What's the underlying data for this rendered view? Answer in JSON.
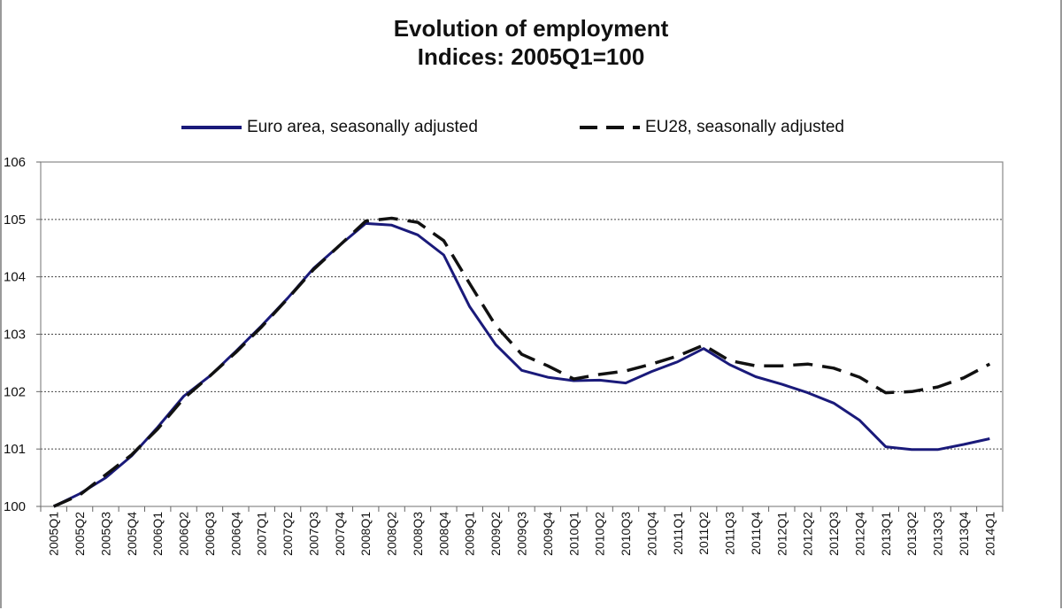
{
  "chart_data": {
    "type": "line",
    "title": "Evolution of employment",
    "subtitle": "Indices: 2005Q1=100",
    "xlabel": "",
    "ylabel": "",
    "ylim": [
      100,
      106
    ],
    "yticks": [
      100,
      101,
      102,
      103,
      104,
      105,
      106
    ],
    "grid": "horizontal dotted",
    "legend_position": "top",
    "categories": [
      "2005Q1",
      "2005Q2",
      "2005Q3",
      "2005Q4",
      "2006Q1",
      "2006Q2",
      "2006Q3",
      "2006Q4",
      "2007Q1",
      "2007Q2",
      "2007Q3",
      "2007Q4",
      "2008Q1",
      "2008Q2",
      "2008Q3",
      "2008Q4",
      "2009Q1",
      "2009Q2",
      "2009Q3",
      "2009Q4",
      "2010Q1",
      "2010Q2",
      "2010Q3",
      "2010Q4",
      "2011Q1",
      "2011Q2",
      "2011Q3",
      "2011Q4",
      "2012Q1",
      "2012Q2",
      "2012Q3",
      "2012Q4",
      "2013Q1",
      "2013Q2",
      "2013Q3",
      "2013Q4",
      "2014Q1"
    ],
    "series": [
      {
        "name": "Euro area, seasonally adjusted",
        "color": "#1a1a7a",
        "style": "solid",
        "values": [
          100.0,
          100.22,
          100.5,
          100.88,
          101.38,
          101.92,
          102.27,
          102.7,
          103.15,
          103.63,
          104.15,
          104.55,
          104.93,
          104.9,
          104.73,
          104.38,
          103.48,
          102.82,
          102.37,
          102.25,
          102.19,
          102.2,
          102.15,
          102.35,
          102.52,
          102.75,
          102.47,
          102.26,
          102.13,
          101.98,
          101.8,
          101.5,
          101.04,
          100.99,
          100.99,
          101.08,
          101.18
        ]
      },
      {
        "name": "EU28, seasonally adjusted",
        "color": "#111111",
        "style": "dashed",
        "values": [
          100.0,
          100.2,
          100.55,
          100.9,
          101.35,
          101.88,
          102.27,
          102.68,
          103.13,
          103.62,
          104.13,
          104.55,
          104.97,
          105.02,
          104.95,
          104.63,
          103.88,
          103.15,
          102.65,
          102.45,
          102.22,
          102.3,
          102.36,
          102.48,
          102.62,
          102.81,
          102.54,
          102.45,
          102.45,
          102.48,
          102.41,
          102.25,
          101.98,
          102.0,
          102.08,
          102.24,
          102.48
        ]
      }
    ]
  }
}
